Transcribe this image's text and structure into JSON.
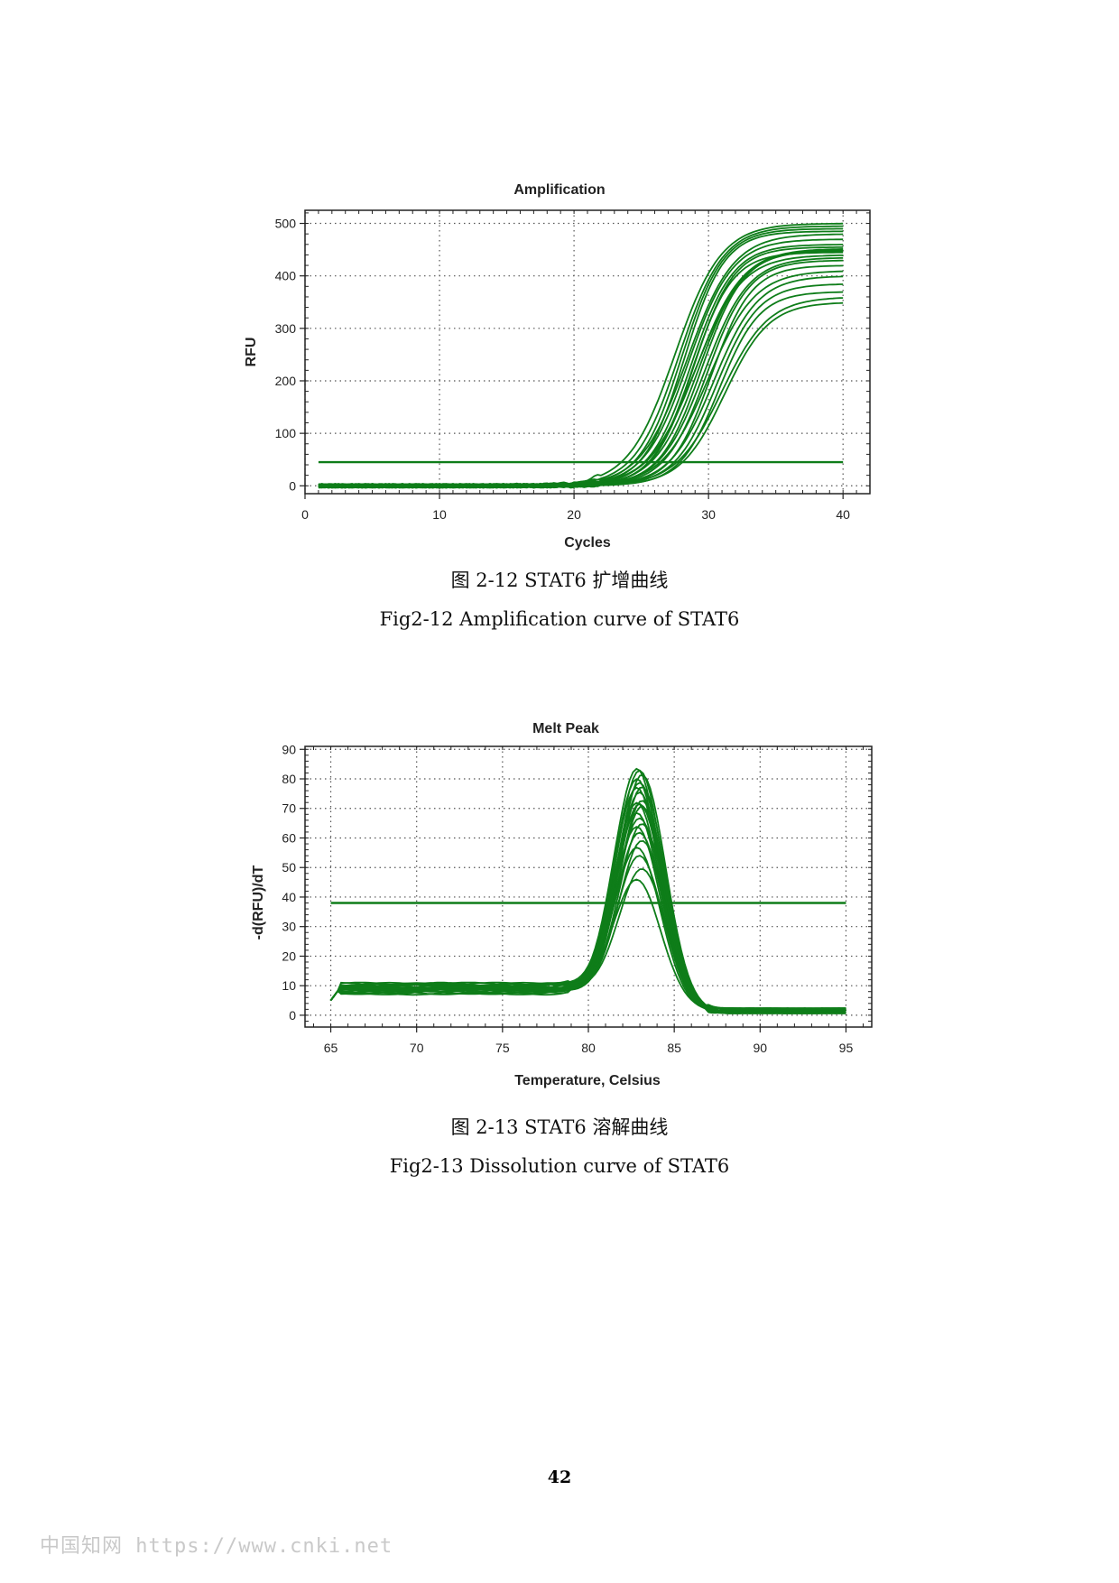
{
  "figures": [
    {
      "caption_zh": "图 2-12 STAT6 扩增曲线",
      "caption_en": "Fig2-12 Amplification curve of STAT6"
    },
    {
      "caption_zh": "图 2-13 STAT6 溶解曲线",
      "caption_en": "Fig2-13 Dissolution curve of STAT6"
    }
  ],
  "page_number": "42",
  "watermark": "中国知网   https://www.cnki.net",
  "colors": {
    "curve": "#0e7d19",
    "grid": "#555555",
    "axis": "#222222"
  },
  "chart_data": [
    {
      "type": "line",
      "title": "Amplification",
      "xlabel": "Cycles",
      "ylabel": "RFU",
      "xlim": [
        0,
        42
      ],
      "ylim": [
        -15,
        525
      ],
      "xticks": [
        "0",
        "10",
        "20",
        "30",
        "40"
      ],
      "yticks": [
        "0",
        "100",
        "200",
        "300",
        "400",
        "500"
      ],
      "grid": true,
      "threshold": 45,
      "x": [
        1,
        40
      ],
      "curve_plateaus": [
        500,
        495,
        490,
        485,
        480,
        470,
        460,
        455,
        452,
        450,
        448,
        445,
        440,
        435,
        430,
        420,
        410,
        400,
        385,
        370,
        360,
        350
      ],
      "curve_midpoints": [
        27.5,
        27.8,
        28.0,
        28.2,
        28.4,
        28.5,
        28.7,
        28.9,
        29.1,
        29.3,
        29.5,
        28.8,
        29.0,
        29.7,
        29.9,
        30.2,
        30.0,
        30.4,
        30.6,
        30.8,
        31.0,
        31.2
      ]
    },
    {
      "type": "line",
      "title": "Melt Peak",
      "xlabel": "Temperature, Celsius",
      "ylabel": "-d(RFU)/dT",
      "xlim": [
        63.5,
        96.5
      ],
      "ylim": [
        -4,
        91
      ],
      "xticks": [
        "65",
        "70",
        "75",
        "80",
        "85",
        "90",
        "95"
      ],
      "yticks": [
        "0",
        "10",
        "20",
        "30",
        "40",
        "50",
        "60",
        "70",
        "80",
        "90"
      ],
      "grid": true,
      "threshold": 38,
      "x": [
        65,
        95
      ],
      "peak_temperature": 83,
      "curve_peaks": [
        86,
        85,
        84,
        83,
        82,
        80,
        79,
        78,
        76,
        75,
        74,
        73,
        71,
        70,
        68,
        66,
        64,
        62,
        60,
        57,
        52,
        48
      ]
    }
  ]
}
